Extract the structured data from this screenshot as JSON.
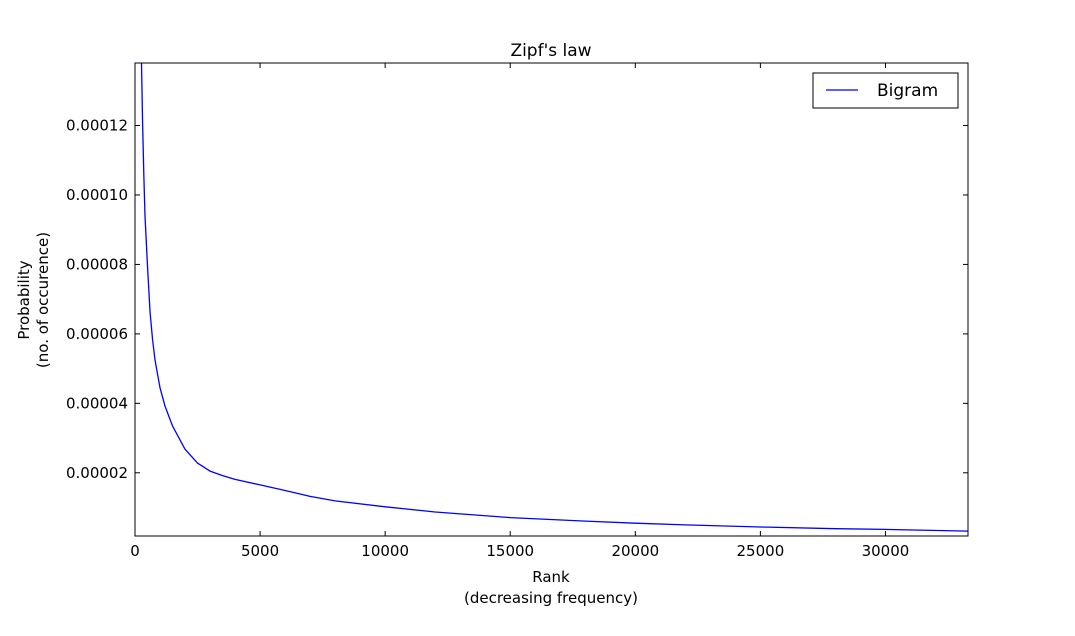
{
  "chart_data": {
    "type": "line",
    "title": "Zipf's law",
    "xlabel_lines": [
      "Rank",
      "(decreasing frequency)"
    ],
    "ylabel_lines": [
      "Probability",
      "(no. of occurence)"
    ],
    "xlim": [
      0,
      33300
    ],
    "ylim": [
      1.8e-06,
      0.000138
    ],
    "x_ticks": [
      0,
      5000,
      10000,
      15000,
      20000,
      25000,
      30000
    ],
    "x_tick_labels": [
      "0",
      "5000",
      "10000",
      "15000",
      "20000",
      "25000",
      "30000"
    ],
    "y_ticks": [
      2e-05,
      4e-05,
      6e-05,
      8e-05,
      0.0001,
      0.00012
    ],
    "y_tick_labels": [
      "0.00002",
      "0.00004",
      "0.00006",
      "0.00008",
      "0.00010",
      "0.00012"
    ],
    "grid": false,
    "legend_position": "top-right",
    "series": [
      {
        "name": "Bigram",
        "color": "#0000ff",
        "x": [
          260,
          300,
          350,
          400,
          500,
          600,
          700,
          800,
          1000,
          1200,
          1500,
          2000,
          2500,
          3000,
          3500,
          4000,
          5000,
          6000,
          7000,
          8000,
          10000,
          12000,
          15000,
          18000,
          20000,
          22000,
          25000,
          28000,
          30000,
          33300
        ],
        "values": [
          0.000138,
          0.000122,
          0.000106,
          9.4e-05,
          7.95e-05,
          6.65e-05,
          5.85e-05,
          5.25e-05,
          4.45e-05,
          3.92e-05,
          3.35e-05,
          2.68e-05,
          2.28e-05,
          2.05e-05,
          1.92e-05,
          1.81e-05,
          1.65e-05,
          1.49e-05,
          1.32e-05,
          1.19e-05,
          1.02e-05,
          8.7e-06,
          7.1e-06,
          6.1e-06,
          5.5e-06,
          5e-06,
          4.4e-06,
          3.9e-06,
          3.7e-06,
          3.2e-06
        ]
      }
    ]
  }
}
